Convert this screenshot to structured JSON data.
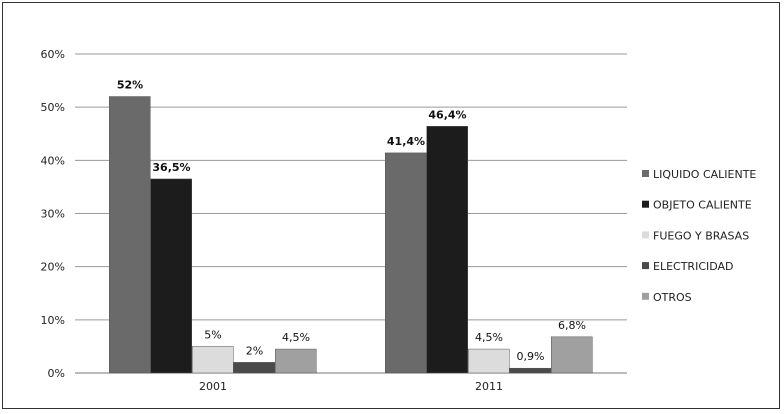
{
  "chart_data": {
    "type": "bar",
    "categories": [
      "2001",
      "2011"
    ],
    "ylim": [
      0,
      60
    ],
    "yticks": [
      "0%",
      "10%",
      "20%",
      "30%",
      "40%",
      "50%",
      "60%"
    ],
    "grid": true,
    "legend_position": "right",
    "series": [
      {
        "name": "LIQUIDO CALIENTE",
        "color": "#6a6a6a",
        "values": [
          52,
          41.4
        ],
        "labels": [
          "52%",
          "41,4%"
        ],
        "label_bold": true
      },
      {
        "name": "OBJETO CALIENTE",
        "color": "#1c1c1c",
        "values": [
          36.5,
          46.4
        ],
        "labels": [
          "36,5%",
          "46,4%"
        ],
        "label_bold": true
      },
      {
        "name": "FUEGO Y BRASAS",
        "color": "#dcdcdc",
        "values": [
          5,
          4.5
        ],
        "labels": [
          "5%",
          "4,5%"
        ],
        "label_bold": false
      },
      {
        "name": "ELECTRICIDAD",
        "color": "#4a4a4a",
        "values": [
          2,
          0.9
        ],
        "labels": [
          "2%",
          "0,9%"
        ],
        "label_bold": false
      },
      {
        "name": "OTROS",
        "color": "#a0a0a0",
        "values": [
          4.5,
          6.8
        ],
        "labels": [
          "4,5%",
          "6,8%"
        ],
        "label_bold": false
      }
    ]
  }
}
